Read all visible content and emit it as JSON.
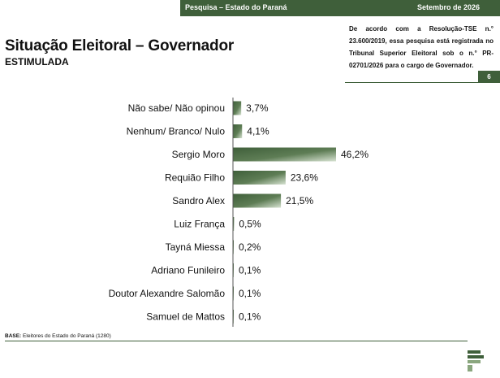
{
  "header": {
    "left_text": "Pesquisa – Estado do Paraná",
    "right_text": "Setembro de 2026"
  },
  "title": "Situação Eleitoral – Governador",
  "subtitle": "ESTIMULADA",
  "notice": "De acordo com a Resolução-TSE n.° 23.600/2019, essa pesquisa está registrada no Tribunal Superior Eleitoral sob o n.° PR-02701/2026 para o cargo de Governador.",
  "page_number": "6",
  "base": {
    "label": "BASE:",
    "text": "Eleitores do Estado do Paraná (1280)"
  },
  "colors": {
    "brand": "#3f5f3a",
    "bar_dark": "#3f5f3a",
    "bar_light": "#d6e2d1"
  },
  "chart_data": {
    "type": "bar",
    "orientation": "horizontal",
    "categories": [
      "Não sabe/ Não opinou",
      "Nenhum/ Branco/ Nulo",
      "Sergio Moro",
      "Requião Filho",
      "Sandro Alex",
      "Luiz França",
      "Tayná Miessa",
      "Adriano Funileiro",
      "Doutor Alexandre Salomão",
      "Samuel de Mattos"
    ],
    "values": [
      3.7,
      4.1,
      46.2,
      23.6,
      21.5,
      0.5,
      0.2,
      0.1,
      0.1,
      0.1
    ],
    "value_labels": [
      "3,7%",
      "4,1%",
      "46,2%",
      "23,6%",
      "21,5%",
      "0,5%",
      "0,2%",
      "0,1%",
      "0,1%",
      "0,1%"
    ],
    "xlim": [
      0,
      50
    ],
    "grid": false,
    "legend": "none"
  }
}
